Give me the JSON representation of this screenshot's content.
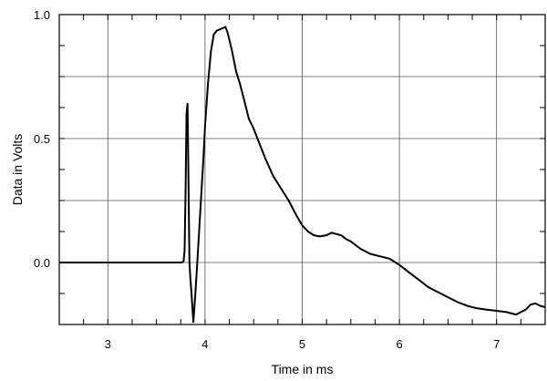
{
  "chart_data": {
    "type": "line",
    "title": "",
    "xlabel": "Time in ms",
    "ylabel": "Data in Volts",
    "xlim": [
      2.5,
      7.5
    ],
    "ylim": [
      -0.25,
      1.0
    ],
    "grid": true,
    "x_ticks": [
      3,
      4,
      5,
      6,
      7
    ],
    "x_tick_labels": [
      "3",
      "4",
      "5",
      "6",
      "7"
    ],
    "y_ticks": [
      0.0,
      0.5,
      1.0
    ],
    "y_tick_labels": [
      "0.0",
      "0.5",
      "1.0"
    ],
    "x_minor_step": 0.25,
    "y_minor_step": 0.125,
    "series": [
      {
        "color": "#000000",
        "x": [
          2.5,
          3.0,
          3.5,
          3.72,
          3.76,
          3.78,
          3.79,
          3.8,
          3.81,
          3.82,
          3.825,
          3.84,
          3.85,
          3.86,
          3.87,
          3.88,
          3.9,
          3.92,
          3.95,
          3.98,
          4.0,
          4.03,
          4.06,
          4.09,
          4.12,
          4.15,
          4.18,
          4.21,
          4.23,
          4.25,
          4.28,
          4.32,
          4.36,
          4.4,
          4.45,
          4.5,
          4.55,
          4.62,
          4.7,
          4.78,
          4.86,
          4.94,
          5.0,
          5.06,
          5.12,
          5.18,
          5.25,
          5.3,
          5.35,
          5.4,
          5.45,
          5.5,
          5.6,
          5.7,
          5.8,
          5.9,
          6.0,
          6.1,
          6.2,
          6.3,
          6.4,
          6.5,
          6.6,
          6.7,
          6.8,
          6.9,
          7.0,
          7.1,
          7.2,
          7.25,
          7.3,
          7.35,
          7.4,
          7.45,
          7.5
        ],
        "y": [
          0.0,
          0.0,
          0.0,
          0.0,
          0.0,
          0.005,
          0.05,
          0.3,
          0.6,
          0.64,
          0.5,
          0.0,
          -0.07,
          -0.12,
          -0.18,
          -0.24,
          -0.13,
          0.0,
          0.2,
          0.4,
          0.55,
          0.72,
          0.85,
          0.92,
          0.935,
          0.94,
          0.945,
          0.95,
          0.93,
          0.9,
          0.85,
          0.77,
          0.72,
          0.66,
          0.58,
          0.54,
          0.49,
          0.42,
          0.35,
          0.3,
          0.25,
          0.19,
          0.15,
          0.125,
          0.11,
          0.105,
          0.11,
          0.12,
          0.115,
          0.11,
          0.095,
          0.085,
          0.055,
          0.035,
          0.025,
          0.015,
          -0.01,
          -0.04,
          -0.07,
          -0.1,
          -0.12,
          -0.14,
          -0.16,
          -0.175,
          -0.185,
          -0.19,
          -0.195,
          -0.2,
          -0.21,
          -0.2,
          -0.19,
          -0.17,
          -0.165,
          -0.175,
          -0.18
        ]
      }
    ]
  }
}
